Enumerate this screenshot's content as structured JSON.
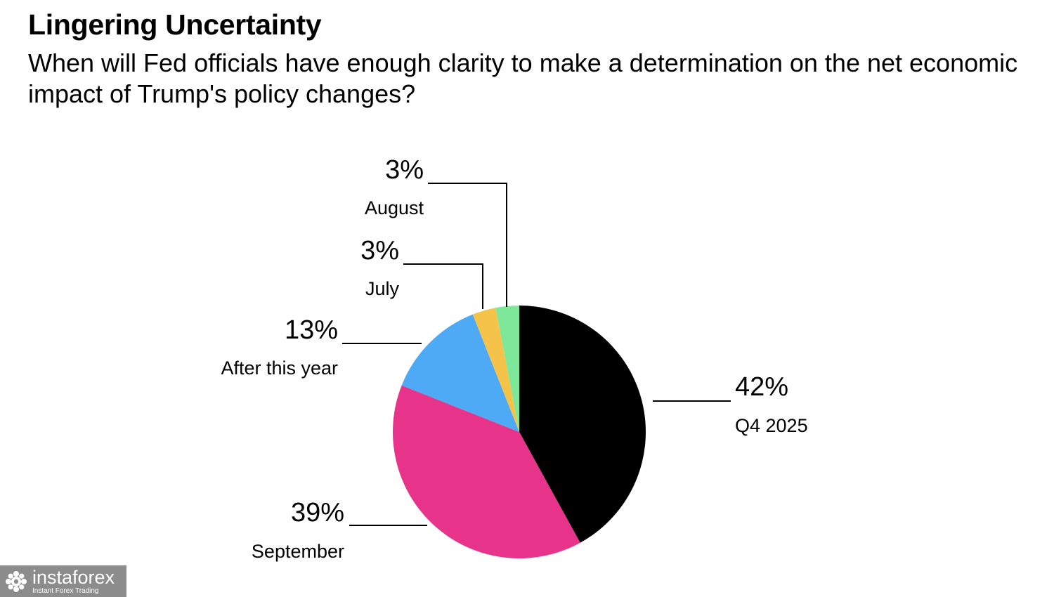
{
  "chart_data": {
    "type": "pie",
    "title": "Lingering Uncertainty",
    "subtitle": "When will Fed officials have enough clarity to make a determination on the net economic impact of Trump's policy changes?",
    "slices": [
      {
        "label": "Q4 2025",
        "value": 42,
        "value_label": "42%",
        "color": "#000000"
      },
      {
        "label": "September",
        "value": 39,
        "value_label": "39%",
        "color": "#e8338a"
      },
      {
        "label": "After this year",
        "value": 13,
        "value_label": "13%",
        "color": "#4eaaf4"
      },
      {
        "label": "July",
        "value": 3,
        "value_label": "3%",
        "color": "#f5c24a"
      },
      {
        "label": "August",
        "value": 3,
        "value_label": "3%",
        "color": "#7de89a"
      }
    ],
    "start": "12 o'clock",
    "direction": "clockwise"
  },
  "watermark": {
    "brand": "instaforex",
    "tagline": "Instant Forex Trading",
    "icon": "gear-flower-icon"
  }
}
